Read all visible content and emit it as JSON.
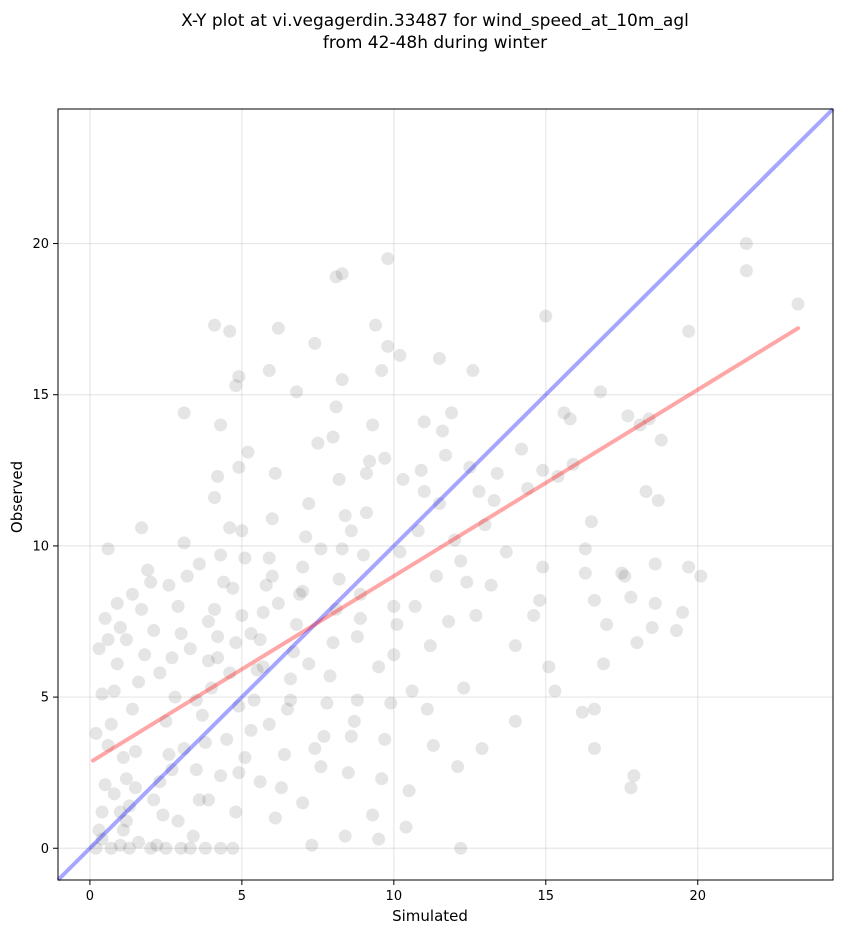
{
  "chart_data": {
    "type": "scatter",
    "title_lines": [
      "X-Y plot at vi.vegagerdin.33487 for wind_speed_at_10m_agl",
      "from 42-48h during winter"
    ],
    "xlabel": "Simulated",
    "ylabel": "Observed",
    "xlim": [
      -1.05,
      24.45
    ],
    "ylim": [
      -1.05,
      24.45
    ],
    "x_ticks": [
      0,
      5,
      10,
      15,
      20
    ],
    "y_ticks": [
      0,
      5,
      10,
      15,
      20
    ],
    "grid": true,
    "point_color": "#000000",
    "point_alpha": 0.1,
    "identity_line": {
      "from": [
        -1.05,
        -1.05
      ],
      "to": [
        24.45,
        24.45
      ],
      "color": "#0000ff"
    },
    "fit_line": {
      "from": [
        0.1,
        2.9
      ],
      "to": [
        23.3,
        17.2
      ],
      "color": "#ff0000"
    },
    "points": [
      [
        0.3,
        0.6
      ],
      [
        0.4,
        1.2
      ],
      [
        0.5,
        2.1
      ],
      [
        0.6,
        3.4
      ],
      [
        0.7,
        4.1
      ],
      [
        0.8,
        5.2
      ],
      [
        0.9,
        6.1
      ],
      [
        1.0,
        7.3
      ],
      [
        0.5,
        7.6
      ],
      [
        0.6,
        9.9
      ],
      [
        0.2,
        3.8
      ],
      [
        0.3,
        6.6
      ],
      [
        0.4,
        5.1
      ],
      [
        1.1,
        0.6
      ],
      [
        1.3,
        1.4
      ],
      [
        1.2,
        2.3
      ],
      [
        1.5,
        3.2
      ],
      [
        1.4,
        4.6
      ],
      [
        1.6,
        5.5
      ],
      [
        1.8,
        6.4
      ],
      [
        1.7,
        7.9
      ],
      [
        2.0,
        8.8
      ],
      [
        1.9,
        9.2
      ],
      [
        2.2,
        0.1
      ],
      [
        2.4,
        1.1
      ],
      [
        2.3,
        2.2
      ],
      [
        2.6,
        3.1
      ],
      [
        2.5,
        4.2
      ],
      [
        2.8,
        5.0
      ],
      [
        2.7,
        6.3
      ],
      [
        3.0,
        7.1
      ],
      [
        2.9,
        8.0
      ],
      [
        3.2,
        9.0
      ],
      [
        3.1,
        10.1
      ],
      [
        1.7,
        10.6
      ],
      [
        3.4,
        0.4
      ],
      [
        3.6,
        1.6
      ],
      [
        3.5,
        2.6
      ],
      [
        3.8,
        3.5
      ],
      [
        3.7,
        4.4
      ],
      [
        4.0,
        5.3
      ],
      [
        3.9,
        6.2
      ],
      [
        4.2,
        7.0
      ],
      [
        4.1,
        7.9
      ],
      [
        4.4,
        8.8
      ],
      [
        4.3,
        9.7
      ],
      [
        4.6,
        10.6
      ],
      [
        4.1,
        11.6
      ],
      [
        4.2,
        12.3
      ],
      [
        3.1,
        14.4
      ],
      [
        4.3,
        14.0
      ],
      [
        4.1,
        17.3
      ],
      [
        4.6,
        17.1
      ],
      [
        4.7,
        0.0
      ],
      [
        4.8,
        1.2
      ],
      [
        4.9,
        2.5
      ],
      [
        4.5,
        3.6
      ],
      [
        4.9,
        4.7
      ],
      [
        4.6,
        5.8
      ],
      [
        4.8,
        6.8
      ],
      [
        5.0,
        7.7
      ],
      [
        4.7,
        8.6
      ],
      [
        5.1,
        9.6
      ],
      [
        5.0,
        10.5
      ],
      [
        4.9,
        12.6
      ],
      [
        4.8,
        15.3
      ],
      [
        4.9,
        15.6
      ],
      [
        5.2,
        13.1
      ],
      [
        5.3,
        3.9
      ],
      [
        5.4,
        4.9
      ],
      [
        5.5,
        5.9
      ],
      [
        5.6,
        6.9
      ],
      [
        5.7,
        7.8
      ],
      [
        5.8,
        8.7
      ],
      [
        5.9,
        9.6
      ],
      [
        6.0,
        10.9
      ],
      [
        5.9,
        15.8
      ],
      [
        6.2,
        17.2
      ],
      [
        6.1,
        12.4
      ],
      [
        6.3,
        2.0
      ],
      [
        6.4,
        3.1
      ],
      [
        6.5,
        4.6
      ],
      [
        6.6,
        5.6
      ],
      [
        6.7,
        6.5
      ],
      [
        6.8,
        7.4
      ],
      [
        6.9,
        8.4
      ],
      [
        7.0,
        9.3
      ],
      [
        7.1,
        10.3
      ],
      [
        7.2,
        11.4
      ],
      [
        6.8,
        15.1
      ],
      [
        7.4,
        16.7
      ],
      [
        7.5,
        13.4
      ],
      [
        7.3,
        0.1
      ],
      [
        7.6,
        2.7
      ],
      [
        7.7,
        3.7
      ],
      [
        7.8,
        4.8
      ],
      [
        7.9,
        5.7
      ],
      [
        8.0,
        6.8
      ],
      [
        8.1,
        7.9
      ],
      [
        8.2,
        8.9
      ],
      [
        8.3,
        9.9
      ],
      [
        8.4,
        11.0
      ],
      [
        8.2,
        12.2
      ],
      [
        8.1,
        14.6
      ],
      [
        8.3,
        15.5
      ],
      [
        8.1,
        18.9
      ],
      [
        8.3,
        19.0
      ],
      [
        8.4,
        0.4
      ],
      [
        8.5,
        2.5
      ],
      [
        8.6,
        3.7
      ],
      [
        8.7,
        4.2
      ],
      [
        8.8,
        7.0
      ],
      [
        8.9,
        8.4
      ],
      [
        9.0,
        9.7
      ],
      [
        9.1,
        11.1
      ],
      [
        9.2,
        12.8
      ],
      [
        9.3,
        14.0
      ],
      [
        9.4,
        17.3
      ],
      [
        9.6,
        15.8
      ],
      [
        9.8,
        19.5
      ],
      [
        9.8,
        16.6
      ],
      [
        9.5,
        0.3
      ],
      [
        9.3,
        1.1
      ],
      [
        9.6,
        2.3
      ],
      [
        9.7,
        3.6
      ],
      [
        9.9,
        4.8
      ],
      [
        10.0,
        6.4
      ],
      [
        10.1,
        7.4
      ],
      [
        10.2,
        9.8
      ],
      [
        10.3,
        12.2
      ],
      [
        10.2,
        16.3
      ],
      [
        10.4,
        0.7
      ],
      [
        10.5,
        1.9
      ],
      [
        10.6,
        5.2
      ],
      [
        10.7,
        8.0
      ],
      [
        10.8,
        10.5
      ],
      [
        10.9,
        12.5
      ],
      [
        11.0,
        14.1
      ],
      [
        11.1,
        4.6
      ],
      [
        11.2,
        6.7
      ],
      [
        11.3,
        3.4
      ],
      [
        11.4,
        9.0
      ],
      [
        11.5,
        11.4
      ],
      [
        11.6,
        13.8
      ],
      [
        11.5,
        16.2
      ],
      [
        11.8,
        7.5
      ],
      [
        11.9,
        14.4
      ],
      [
        12.0,
        10.2
      ],
      [
        12.1,
        2.7
      ],
      [
        12.2,
        0.0
      ],
      [
        12.3,
        5.3
      ],
      [
        12.4,
        8.8
      ],
      [
        12.5,
        12.6
      ],
      [
        12.6,
        15.8
      ],
      [
        12.7,
        7.7
      ],
      [
        12.8,
        11.8
      ],
      [
        12.9,
        3.3
      ],
      [
        13.0,
        10.7
      ],
      [
        13.2,
        8.7
      ],
      [
        13.4,
        12.4
      ],
      [
        13.7,
        9.8
      ],
      [
        14.0,
        4.2
      ],
      [
        14.0,
        6.7
      ],
      [
        14.2,
        13.2
      ],
      [
        14.4,
        11.9
      ],
      [
        14.6,
        7.7
      ],
      [
        14.8,
        8.2
      ],
      [
        14.9,
        9.3
      ],
      [
        15.0,
        17.6
      ],
      [
        15.1,
        6.0
      ],
      [
        15.3,
        5.2
      ],
      [
        15.4,
        12.3
      ],
      [
        15.6,
        14.4
      ],
      [
        15.8,
        14.2
      ],
      [
        15.9,
        12.7
      ],
      [
        16.2,
        4.5
      ],
      [
        16.3,
        9.9
      ],
      [
        16.3,
        9.1
      ],
      [
        16.5,
        10.8
      ],
      [
        16.6,
        4.6
      ],
      [
        16.6,
        3.3
      ],
      [
        16.6,
        8.2
      ],
      [
        16.8,
        15.1
      ],
      [
        16.9,
        6.1
      ],
      [
        17.0,
        7.4
      ],
      [
        17.5,
        9.1
      ],
      [
        17.6,
        9.0
      ],
      [
        17.7,
        14.3
      ],
      [
        17.8,
        8.3
      ],
      [
        17.8,
        2.0
      ],
      [
        17.9,
        2.4
      ],
      [
        18.0,
        6.8
      ],
      [
        18.1,
        14.0
      ],
      [
        18.3,
        11.8
      ],
      [
        18.4,
        14.2
      ],
      [
        18.5,
        7.3
      ],
      [
        18.6,
        9.4
      ],
      [
        18.6,
        8.1
      ],
      [
        18.7,
        11.5
      ],
      [
        18.8,
        13.5
      ],
      [
        19.3,
        7.2
      ],
      [
        19.5,
        7.8
      ],
      [
        19.7,
        9.3
      ],
      [
        19.7,
        17.1
      ],
      [
        20.1,
        9.0
      ],
      [
        21.6,
        20.0
      ],
      [
        21.6,
        19.1
      ],
      [
        23.3,
        18.0
      ],
      [
        0.2,
        0.0
      ],
      [
        0.4,
        0.3
      ],
      [
        0.7,
        0.0
      ],
      [
        1.0,
        0.1
      ],
      [
        1.3,
        0.0
      ],
      [
        1.6,
        0.2
      ],
      [
        2.0,
        0.0
      ],
      [
        2.5,
        0.0
      ],
      [
        3.0,
        0.0
      ],
      [
        3.3,
        0.0
      ],
      [
        3.8,
        0.0
      ],
      [
        4.3,
        0.0
      ],
      [
        1.0,
        1.2
      ],
      [
        1.2,
        0.9
      ],
      [
        0.8,
        1.8
      ],
      [
        1.5,
        2.0
      ],
      [
        1.1,
        3.0
      ],
      [
        2.1,
        1.6
      ],
      [
        2.7,
        2.6
      ],
      [
        3.1,
        3.3
      ],
      [
        3.5,
        4.9
      ],
      [
        2.3,
        5.8
      ],
      [
        1.2,
        6.9
      ],
      [
        0.9,
        8.1
      ],
      [
        2.1,
        7.2
      ],
      [
        3.3,
        6.6
      ],
      [
        3.9,
        7.5
      ],
      [
        2.6,
        8.7
      ],
      [
        3.6,
        9.4
      ],
      [
        4.2,
        6.3
      ],
      [
        5.3,
        7.1
      ],
      [
        5.7,
        6.0
      ],
      [
        6.2,
        8.1
      ],
      [
        6.0,
        9.0
      ],
      [
        7.0,
        8.5
      ],
      [
        7.6,
        9.9
      ],
      [
        8.6,
        10.5
      ],
      [
        9.1,
        12.4
      ],
      [
        9.7,
        12.9
      ],
      [
        8.0,
        13.6
      ],
      [
        8.9,
        7.6
      ],
      [
        7.2,
        6.1
      ],
      [
        6.6,
        4.9
      ],
      [
        5.9,
        4.1
      ],
      [
        5.1,
        3.0
      ],
      [
        4.3,
        2.4
      ],
      [
        3.9,
        1.6
      ],
      [
        2.9,
        0.9
      ],
      [
        5.6,
        2.2
      ],
      [
        6.1,
        1.0
      ],
      [
        7.0,
        1.5
      ],
      [
        7.4,
        3.3
      ],
      [
        8.8,
        4.9
      ],
      [
        9.5,
        6.0
      ],
      [
        10.0,
        8.0
      ],
      [
        11.0,
        11.8
      ],
      [
        12.2,
        9.5
      ],
      [
        11.7,
        13.0
      ],
      [
        13.3,
        11.5
      ],
      [
        14.9,
        12.5
      ],
      [
        0.6,
        6.9
      ],
      [
        1.4,
        8.4
      ]
    ]
  }
}
